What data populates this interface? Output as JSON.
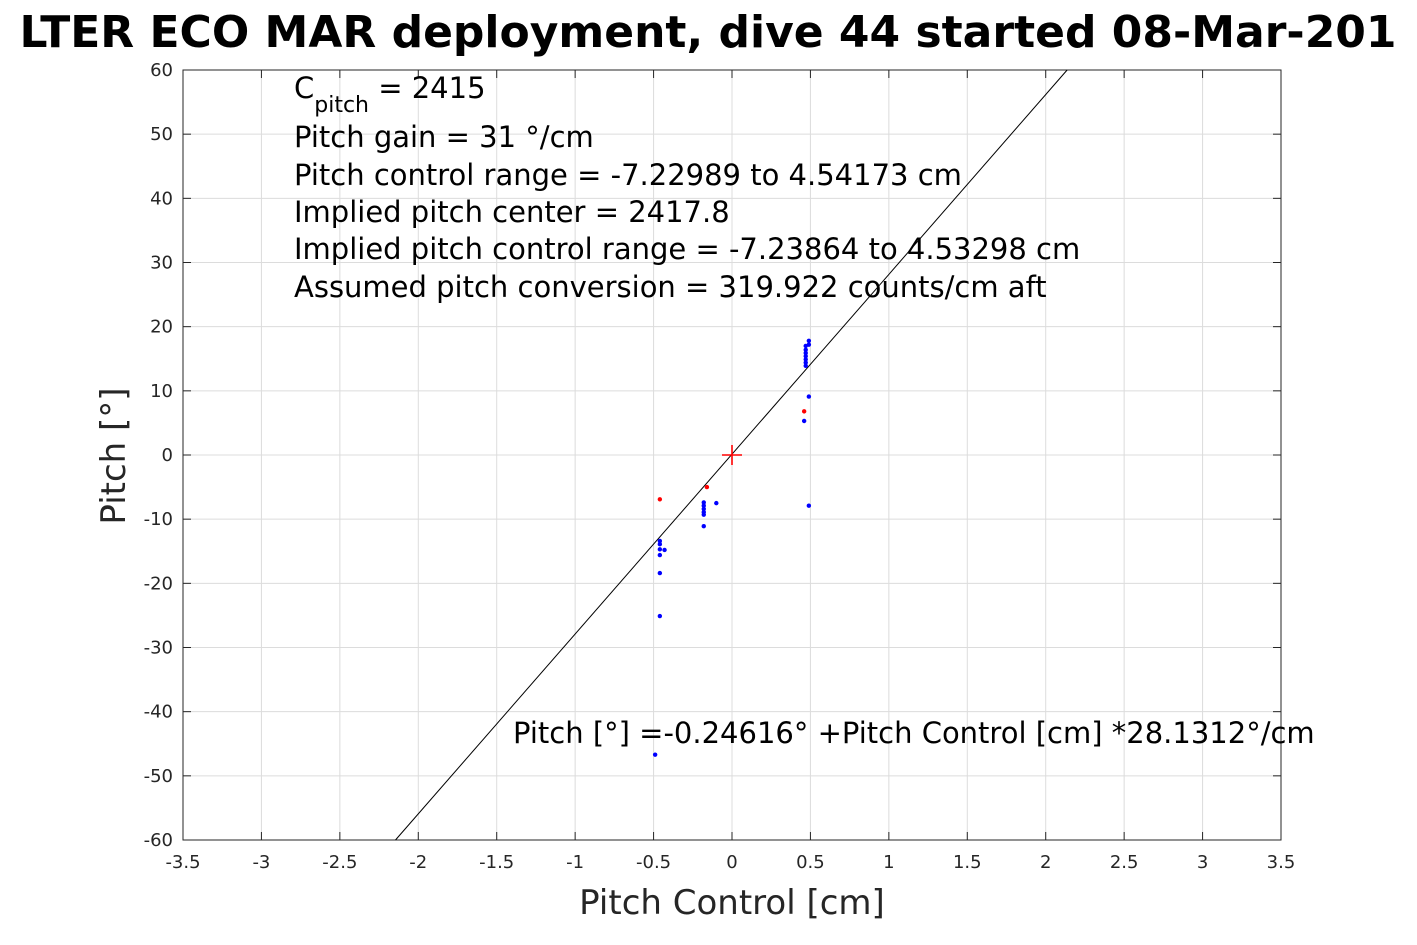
{
  "chart_data": {
    "type": "scatter",
    "title": "LTER ECO MAR deployment, dive 44 started 08-Mar-201",
    "xlabel": "Pitch Control [cm]",
    "ylabel": "Pitch [°]",
    "xlim": [
      -3.5,
      3.5
    ],
    "ylim": [
      -60,
      60
    ],
    "grid": true,
    "x_ticks": [
      -3.5,
      -3,
      -2.5,
      -2,
      -1.5,
      -1,
      -0.5,
      0,
      0.5,
      1,
      1.5,
      2,
      2.5,
      3,
      3.5
    ],
    "x_tick_labels": [
      "-3.5",
      "-3",
      "-2.5",
      "-2",
      "-1.5",
      "-1",
      "-0.5",
      "0",
      "0.5",
      "1",
      "1.5",
      "2",
      "2.5",
      "3",
      "3.5"
    ],
    "y_ticks": [
      -60,
      -50,
      -40,
      -30,
      -20,
      -10,
      0,
      10,
      20,
      30,
      40,
      50,
      60
    ],
    "y_tick_labels": [
      "-60",
      "-50",
      "-40",
      "-30",
      "-20",
      "-10",
      "0",
      "10",
      "20",
      "30",
      "40",
      "50",
      "60"
    ],
    "series": [
      {
        "color": "#0000ff",
        "marker": "dot",
        "points": [
          [
            0.47,
            17.0
          ],
          [
            0.47,
            16.4
          ],
          [
            0.47,
            15.9
          ],
          [
            0.47,
            15.4
          ],
          [
            0.47,
            14.9
          ],
          [
            0.47,
            14.4
          ],
          [
            0.47,
            13.9
          ],
          [
            0.49,
            17.8
          ],
          [
            0.49,
            17.2
          ],
          [
            0.49,
            9.1
          ],
          [
            0.46,
            5.3
          ],
          [
            0.49,
            -7.9
          ],
          [
            -0.18,
            -7.4
          ],
          [
            -0.18,
            -7.9
          ],
          [
            -0.18,
            -8.4
          ],
          [
            -0.18,
            -8.9
          ],
          [
            -0.18,
            -9.3
          ],
          [
            -0.1,
            -7.5
          ],
          [
            -0.18,
            -11.1
          ],
          [
            -0.46,
            -13.4
          ],
          [
            -0.46,
            -13.9
          ],
          [
            -0.46,
            -14.7
          ],
          [
            -0.43,
            -14.8
          ],
          [
            -0.46,
            -15.6
          ],
          [
            -0.46,
            -18.4
          ],
          [
            -0.46,
            -25.1
          ],
          [
            -0.49,
            -46.7
          ]
        ]
      },
      {
        "color": "#ff0000",
        "marker": "dot",
        "points": [
          [
            0.46,
            6.8
          ],
          [
            -0.16,
            -5.0
          ],
          [
            -0.46,
            -6.9
          ]
        ]
      },
      {
        "color": "#000000",
        "type": "line",
        "points": [
          [
            -2.1454,
            -60
          ],
          [
            2.1366,
            60
          ]
        ]
      }
    ],
    "center_marker": {
      "x": 0,
      "y": 0,
      "color": "#ff0000",
      "marker": "plus"
    },
    "annotations": {
      "c_pitch_main": "C",
      "c_pitch_sub": "pitch",
      "c_pitch_value": " = 2415",
      "lines": [
        "Pitch gain = 31 °/cm",
        "Pitch control range = -7.22989 to 4.54173 cm",
        "Implied pitch center = 2417.8",
        "Implied pitch control range = -7.23864 to 4.53298 cm",
        "Assumed pitch conversion = 319.922 counts/cm aft"
      ],
      "fit_equation": "Pitch [°] =-0.24616° +Pitch Control [cm] *28.1312°/cm"
    }
  }
}
